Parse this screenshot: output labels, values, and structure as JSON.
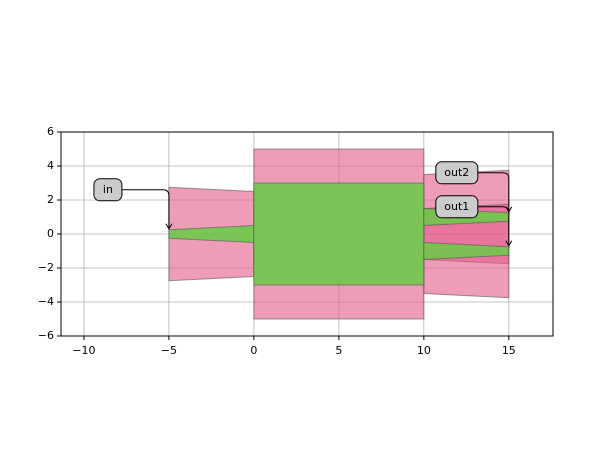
{
  "chart_data": {
    "type": "polygon",
    "xlim": [
      -11.35,
      17.6
    ],
    "ylim": [
      -6,
      6
    ],
    "xticks": [
      {
        "value": -10,
        "label": "−10"
      },
      {
        "value": -5,
        "label": "−5"
      },
      0,
      5,
      10,
      15
    ],
    "yticks": [
      {
        "value": -6,
        "label": "−6"
      },
      {
        "value": -4,
        "label": "−4"
      },
      {
        "value": -2,
        "label": "−2"
      },
      0,
      2,
      4,
      6
    ],
    "grid": true,
    "polygons": [
      {
        "color": "#e55a8a",
        "x": [
          -5,
          0,
          0,
          -5
        ],
        "y": [
          2.75,
          2.5,
          -2.5,
          -2.75
        ]
      },
      {
        "color": "#e55a8a",
        "x": [
          0,
          10,
          10,
          0
        ],
        "y": [
          5,
          5,
          -5,
          -5
        ]
      },
      {
        "color": "#e55a8a",
        "x": [
          10,
          15,
          15,
          10
        ],
        "y": [
          3.5,
          3.75,
          -1.75,
          -1.5
        ]
      },
      {
        "color": "#e55a8a",
        "x": [
          10,
          15,
          15,
          10
        ],
        "y": [
          1.5,
          1.75,
          -3.75,
          -3.5
        ]
      },
      {
        "color": "#66cc44",
        "x": [
          -5,
          0,
          0,
          -5
        ],
        "y": [
          0.25,
          0.5,
          -0.5,
          -0.25
        ]
      },
      {
        "color": "#66cc44",
        "x": [
          0,
          10,
          10,
          0
        ],
        "y": [
          3,
          3,
          -3,
          -3
        ]
      },
      {
        "color": "#66cc44",
        "x": [
          10,
          15,
          15,
          10
        ],
        "y": [
          1.5,
          1.25,
          0.75,
          0.5
        ]
      },
      {
        "color": "#66cc44",
        "x": [
          10,
          15,
          15,
          10
        ],
        "y": [
          -0.5,
          -0.75,
          -1.25,
          -1.5
        ]
      }
    ],
    "annotations": [
      {
        "text": "in",
        "x": -5,
        "y": 0.25
      },
      {
        "text": "out2",
        "x": 15,
        "y": 1.25
      },
      {
        "text": "out1",
        "x": 15,
        "y": -0.75
      }
    ]
  }
}
